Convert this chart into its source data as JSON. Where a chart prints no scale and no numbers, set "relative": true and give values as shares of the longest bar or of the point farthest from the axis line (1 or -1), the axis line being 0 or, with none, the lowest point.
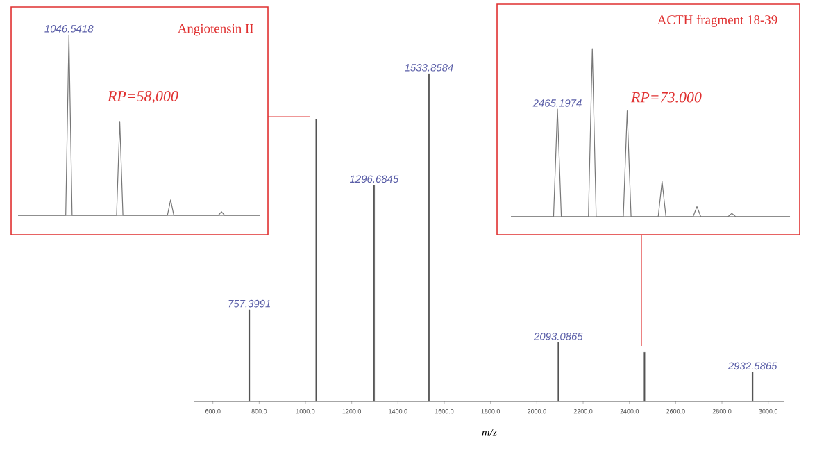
{
  "chart_data": [
    {
      "type": "bar",
      "relative": true,
      "xlabel": "m/z",
      "xlim": [
        520,
        3070
      ],
      "xticks": [
        {
          "value": 600,
          "label": "600.0"
        },
        {
          "value": 800,
          "label": "800.0"
        },
        {
          "value": 1000,
          "label": "1000.0"
        },
        {
          "value": 1200,
          "label": "1200.0"
        },
        {
          "value": 1400,
          "label": "1400.0"
        },
        {
          "value": 1600,
          "label": "1600.0"
        },
        {
          "value": 1800,
          "label": "1800.0"
        },
        {
          "value": 2000,
          "label": "2000.0"
        },
        {
          "value": 2200,
          "label": "2200.0"
        },
        {
          "value": 2400,
          "label": "2400.0"
        },
        {
          "value": 2600,
          "label": "2600.0"
        },
        {
          "value": 2800,
          "label": "2800.0"
        },
        {
          "value": 3000,
          "label": "3000.0"
        }
      ],
      "x": [
        757.3991,
        1046.5418,
        1296.6845,
        1533.8584,
        2093.0865,
        2465.1974,
        2932.5865
      ],
      "values": [
        0.28,
        0.86,
        0.66,
        1,
        0.18,
        0.15,
        0.09
      ],
      "color": "#555555",
      "annotations": [
        {
          "text": "757.3991",
          "x": 757.3991,
          "y": 0.28
        },
        {
          "text": "1296.6845",
          "x": 1296.6845,
          "y": 0.66
        },
        {
          "text": "1533.8584",
          "x": 1533.8584,
          "y": 1
        },
        {
          "text": "2093.0865",
          "x": 2093.0865,
          "y": 0.18
        },
        {
          "text": "2932.5865",
          "x": 2932.5865,
          "y": 0.09
        }
      ]
    },
    {
      "type": "line",
      "relative": true,
      "title": "Angiotensin II",
      "categories": [
        null,
        null,
        null,
        null,
        null,
        null,
        null,
        null,
        null,
        null,
        null,
        null,
        null,
        null,
        null,
        null,
        null,
        null,
        null,
        null,
        null,
        null,
        null,
        null,
        null,
        null,
        null,
        null,
        null,
        null,
        null,
        null,
        null,
        null,
        null,
        null,
        null,
        null,
        null,
        null,
        null,
        null,
        null,
        null,
        null,
        null,
        null,
        null,
        null,
        null,
        null,
        null,
        null,
        null,
        null,
        null,
        null,
        null,
        null,
        null,
        null,
        null,
        null,
        null,
        null,
        null,
        null,
        null,
        null,
        null,
        null,
        null,
        null,
        null,
        null,
        null,
        null
      ],
      "values": [
        0,
        0,
        0,
        0,
        0,
        0,
        0,
        0,
        0,
        0,
        0,
        0,
        0,
        0,
        0,
        0,
        1,
        0,
        0,
        0,
        0,
        0,
        0,
        0,
        0,
        0,
        0,
        0,
        0,
        0,
        0,
        0,
        0.52,
        0,
        0,
        0,
        0,
        0,
        0,
        0,
        0,
        0,
        0,
        0,
        0,
        0,
        0,
        0,
        0.085,
        0,
        0,
        0,
        0,
        0,
        0,
        0,
        0,
        0,
        0,
        0,
        0,
        0,
        0,
        0,
        0.02,
        0,
        0,
        0,
        0,
        0,
        0,
        0,
        0,
        0,
        0,
        0,
        0
      ],
      "color": "#777777",
      "annotations": [
        "1046.5418",
        "RP=58,000"
      ]
    },
    {
      "type": "line",
      "relative": true,
      "title": "ACTH fragment 18-39",
      "categories": [
        null,
        null,
        null,
        null,
        null,
        null,
        null,
        null,
        null,
        null,
        null,
        null,
        null,
        null,
        null,
        null,
        null,
        null,
        null,
        null,
        null,
        null,
        null,
        null,
        null,
        null,
        null,
        null,
        null,
        null,
        null,
        null,
        null,
        null,
        null,
        null,
        null,
        null,
        null,
        null,
        null,
        null,
        null,
        null,
        null,
        null,
        null,
        null,
        null,
        null,
        null,
        null,
        null,
        null,
        null,
        null,
        null,
        null,
        null,
        null,
        null,
        null,
        null,
        null,
        null,
        null,
        null,
        null,
        null,
        null,
        null,
        null,
        null
      ],
      "values": [
        0,
        0,
        0,
        0,
        0,
        0,
        0,
        0,
        0,
        0,
        0,
        0,
        0.64,
        0,
        0,
        0,
        0,
        0,
        0,
        0,
        0,
        1,
        0,
        0,
        0,
        0,
        0,
        0,
        0,
        0,
        0.63,
        0,
        0,
        0,
        0,
        0,
        0,
        0,
        0,
        0.21,
        0,
        0,
        0,
        0,
        0,
        0,
        0,
        0,
        0.06,
        0,
        0,
        0,
        0,
        0,
        0,
        0,
        0,
        0.02,
        0,
        0,
        0,
        0,
        0,
        0,
        0,
        0,
        0,
        0,
        0,
        0,
        0,
        0,
        0
      ],
      "color": "#777777",
      "annotations": [
        "2465.1974",
        "RP=73.000"
      ]
    }
  ]
}
